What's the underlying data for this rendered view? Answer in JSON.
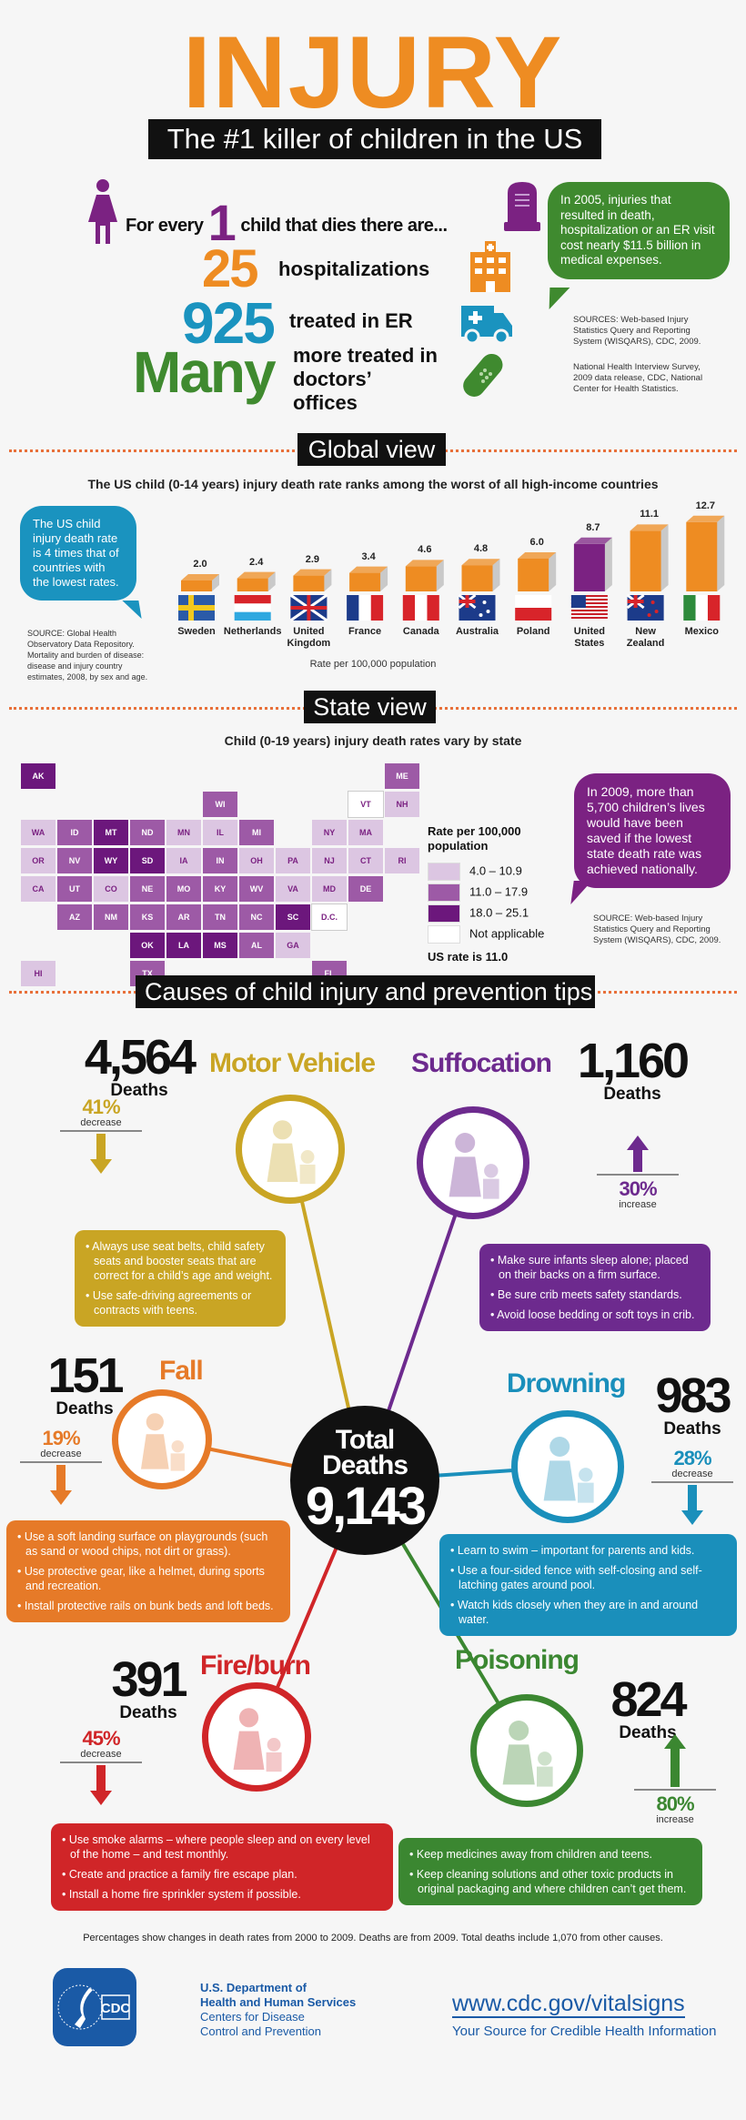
{
  "header": {
    "title": "INJURY",
    "subtitle": "The #1 killer of children in the US"
  },
  "stats": {
    "intro_prefix": "For every",
    "intro_number": "1",
    "intro_suffix": "child that dies there are...",
    "items": [
      {
        "number": "25",
        "label": "hospitalizations",
        "color": "#ee8c22",
        "icon": "hospital-icon"
      },
      {
        "number": "925",
        "label": "treated in ER",
        "color": "#1a93bf",
        "icon": "ambulance-icon"
      },
      {
        "number": "Many",
        "label": "more treated in doctors’ offices",
        "color": "#3f8a2f",
        "icon": "bandage-icon"
      }
    ],
    "cost_bubble": "In 2005, injuries that resulted in death, hospitalization or an ER visit cost nearly $11.5 billion in medical expenses.",
    "sources_1": "SOURCES: Web-based Injury Statistics Query and Reporting System (WISQARS), CDC, 2009.",
    "sources_2": "National Health Interview Survey, 2009 data release, CDC, National Center for Health Statistics."
  },
  "global": {
    "section_label": "Global view",
    "bubble": "The US child injury death rate is 4 times that of countries with the lowest rates.",
    "source": "SOURCE: Global Health Observatory Data Repository. Mortality and burden of disease: disease and injury country estimates, 2008, by sex and age."
  },
  "chart_data": {
    "type": "bar",
    "title": "The US child (0-14 years) injury death rate ranks among the worst of all high-income countries",
    "xlabel": "Rate per 100,000 population",
    "categories": [
      "Sweden",
      "Netherlands",
      "United Kingdom",
      "France",
      "Canada",
      "Australia",
      "Poland",
      "United States",
      "New Zealand",
      "Mexico"
    ],
    "values": [
      2.0,
      2.4,
      2.9,
      3.4,
      4.6,
      4.8,
      6.0,
      8.7,
      11.1,
      12.7
    ],
    "value_labels": [
      "2.0",
      "2.4",
      "2.9",
      "3.4",
      "4.6",
      "4.8",
      "6.0",
      "8.7",
      "11.1",
      "12.7"
    ],
    "bar_color": "#ee8c22",
    "highlight_color": "#7b2282",
    "highlight": "United States"
  },
  "state": {
    "section_label": "State view",
    "title": "Child (0-19 years) injury death rates vary by state",
    "legend_title": "Rate per 100,000 population",
    "legend": [
      {
        "label": "4.0 – 10.9",
        "color": "#dcc6e2"
      },
      {
        "label": "11.0 – 17.9",
        "color": "#9d5aa6"
      },
      {
        "label": "18.0 – 25.1",
        "color": "#6c177c"
      },
      {
        "label": "Not applicable",
        "color": "#ffffff"
      }
    ],
    "us_rate": "US rate is 11.0",
    "bubble": "In 2009, more than 5,700 children’s lives would have been saved if the lowest state death rate was achieved nationally.",
    "source": "SOURCE: Web-based Injury Statistics Query and Reporting System (WISQARS), CDC, 2009.",
    "states": {
      "AK": 2,
      "HI": 0,
      "WA": 0,
      "OR": 0,
      "CA": 0,
      "ID": 1,
      "NV": 1,
      "UT": 1,
      "AZ": 1,
      "MT": 2,
      "WY": 2,
      "CO": 0,
      "NM": 1,
      "ND": 1,
      "SD": 2,
      "NE": 1,
      "KS": 1,
      "OK": 2,
      "TX": 1,
      "MN": 0,
      "IA": 0,
      "MO": 1,
      "AR": 1,
      "LA": 2,
      "WI": 1,
      "IL": 0,
      "MI": 1,
      "IN": 1,
      "KY": 1,
      "TN": 1,
      "MS": 2,
      "AL": 1,
      "OH": 0,
      "WV": 1,
      "VA": 0,
      "NC": 1,
      "SC": 2,
      "GA": 0,
      "FL": 1,
      "PA": 0,
      "NY": 0,
      "VT": 3,
      "NH": 0,
      "ME": 1,
      "MA": 0,
      "RI": 0,
      "CT": 0,
      "NJ": 0,
      "DE": 1,
      "MD": 0,
      "D.C.": 3
    }
  },
  "causes": {
    "section_label": "Causes of child injury and prevention tips",
    "total_label": "Total Deaths",
    "total": "9,143",
    "items": [
      {
        "name": "Motor Vehicle",
        "deaths": "4,564",
        "deaths_label": "Deaths",
        "pct": "41%",
        "change": "decrease",
        "color": "#c9a524",
        "icon": "car-seat-illustration",
        "tips": [
          "Always use seat belts, child safety seats and booster seats that are correct for a child’s age and weight.",
          "Use safe-driving agreements or contracts with teens."
        ]
      },
      {
        "name": "Suffocation",
        "deaths": "1,160",
        "deaths_label": "Deaths",
        "pct": "30%",
        "change": "increase",
        "color": "#6d2a8e",
        "icon": "crib-illustration",
        "tips": [
          "Make sure infants sleep alone; placed on their backs on a firm surface.",
          "Be sure crib meets safety standards.",
          "Avoid loose bedding or soft toys in crib."
        ]
      },
      {
        "name": "Fall",
        "deaths": "151",
        "deaths_label": "Deaths",
        "pct": "19%",
        "change": "decrease",
        "color": "#e67a28",
        "icon": "swing-illustration",
        "tips": [
          "Use a soft landing surface on playgrounds (such as sand or wood chips, not dirt or grass).",
          "Use protective gear, like a helmet, during sports and recreation.",
          "Install protective rails on bunk beds and loft beds."
        ]
      },
      {
        "name": "Drowning",
        "deaths": "983",
        "deaths_label": "Deaths",
        "pct": "28%",
        "change": "decrease",
        "color": "#1a8fbb",
        "icon": "pool-fence-illustration",
        "tips": [
          "Learn to swim – important for parents and kids.",
          "Use a four-sided fence with self-closing and self-latching gates around pool.",
          "Watch kids closely when they are in and around water."
        ]
      },
      {
        "name": "Fire/burn",
        "deaths": "391",
        "deaths_label": "Deaths",
        "pct": "45%",
        "change": "decrease",
        "color": "#d02528",
        "icon": "stove-illustration",
        "tips": [
          "Use smoke alarms – where people sleep and on every level of the home – and test monthly.",
          "Create and practice a family fire escape plan.",
          "Install a home fire sprinkler system if possible."
        ]
      },
      {
        "name": "Poisoning",
        "deaths": "824",
        "deaths_label": "Deaths",
        "pct": "80%",
        "change": "increase",
        "color": "#3b8731",
        "icon": "cabinet-illustration",
        "tips": [
          "Keep medicines away from children and teens.",
          "Keep cleaning solutions and other toxic products in original packaging and where children can’t get them."
        ]
      }
    ],
    "footnote": "Percentages show changes in death rates from 2000 to 2009. Deaths are from 2009. Total deaths include 1,070 from other causes."
  },
  "footer": {
    "logo_text": "CDC",
    "hhs_line1": "U.S. Department of",
    "hhs_line2": "Health and Human Services",
    "cdc_line1": "Centers for Disease",
    "cdc_line2": "Control and Prevention",
    "url": "www.cdc.gov/vitalsigns",
    "tagline": "Your Source for Credible Health Information",
    "brand_color": "#1a5aa6"
  }
}
